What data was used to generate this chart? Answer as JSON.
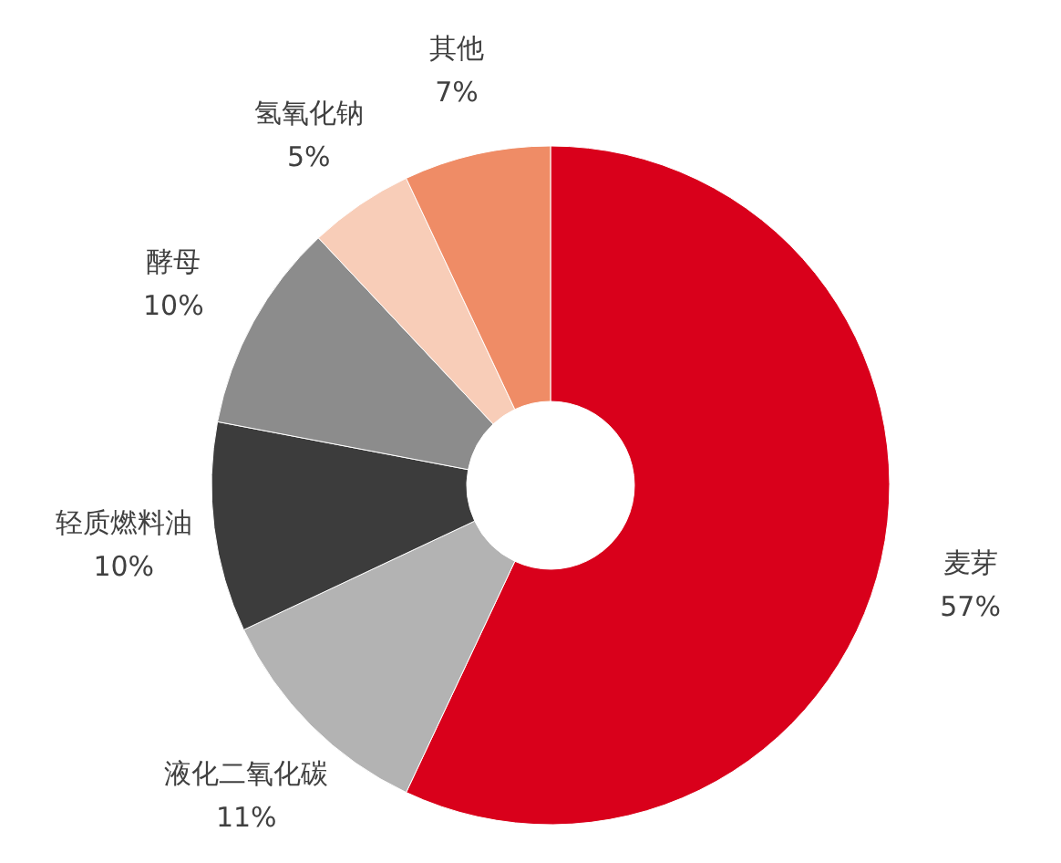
{
  "chart_data": {
    "type": "donut",
    "categories": [
      "麦芽",
      "液化二氧化碳",
      "轻质燃料油",
      "酵母",
      "氢氧化钠",
      "其他"
    ],
    "values": [
      57,
      11,
      10,
      10,
      5,
      7
    ],
    "value_labels": [
      "57%",
      "11%",
      "10%",
      "10%",
      "5%",
      "7%"
    ],
    "colors": [
      "#d9001b",
      "#b3b3b3",
      "#3c3c3c",
      "#8c8c8c",
      "#f8cdb8",
      "#ef8c66"
    ],
    "legend": false
  }
}
